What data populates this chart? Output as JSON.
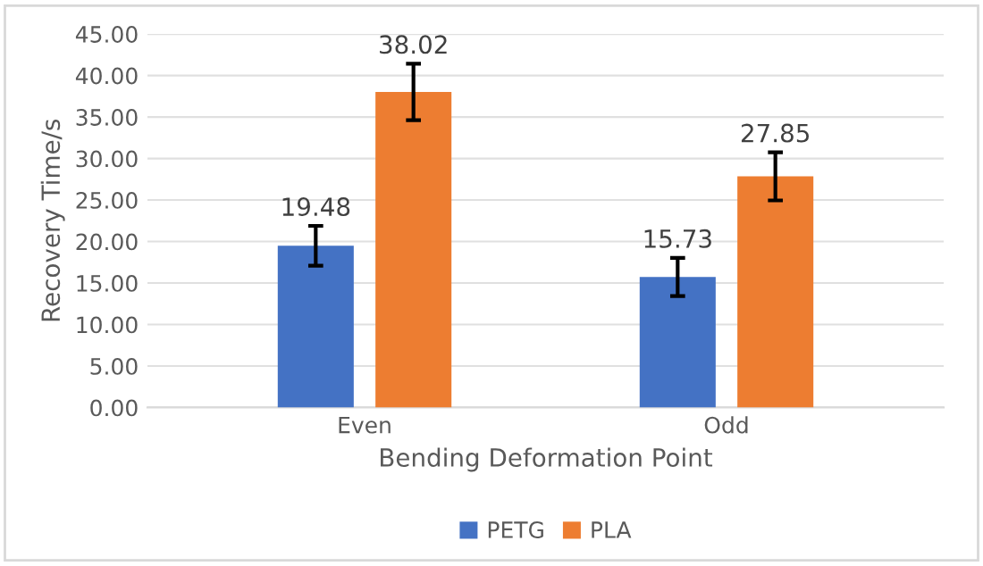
{
  "chart_data": {
    "type": "bar",
    "xlabel": "Bending Deformation Point",
    "ylabel": "Recovery Time/s",
    "categories": [
      "Even",
      "Odd"
    ],
    "series": [
      {
        "name": "PETG",
        "color": "#4472c4",
        "values": [
          19.48,
          15.73
        ],
        "errors": [
          2.4,
          2.3
        ]
      },
      {
        "name": "PLA",
        "color": "#ed7d31",
        "values": [
          38.02,
          27.85
        ],
        "errors": [
          3.4,
          2.9
        ]
      }
    ],
    "ylim": [
      0,
      45
    ],
    "yticks": [
      {
        "value": 0,
        "label": "0.00"
      },
      {
        "value": 5,
        "label": "5.00"
      },
      {
        "value": 10,
        "label": "10.00"
      },
      {
        "value": 15,
        "label": "15.00"
      },
      {
        "value": 20,
        "label": "20.00"
      },
      {
        "value": 25,
        "label": "25.00"
      },
      {
        "value": 30,
        "label": "30.00"
      },
      {
        "value": 35,
        "label": "35.00"
      },
      {
        "value": 40,
        "label": "40.00"
      },
      {
        "value": 45,
        "label": "45.00"
      }
    ],
    "grid": "y",
    "legend": "bottom",
    "data_labels": true
  }
}
